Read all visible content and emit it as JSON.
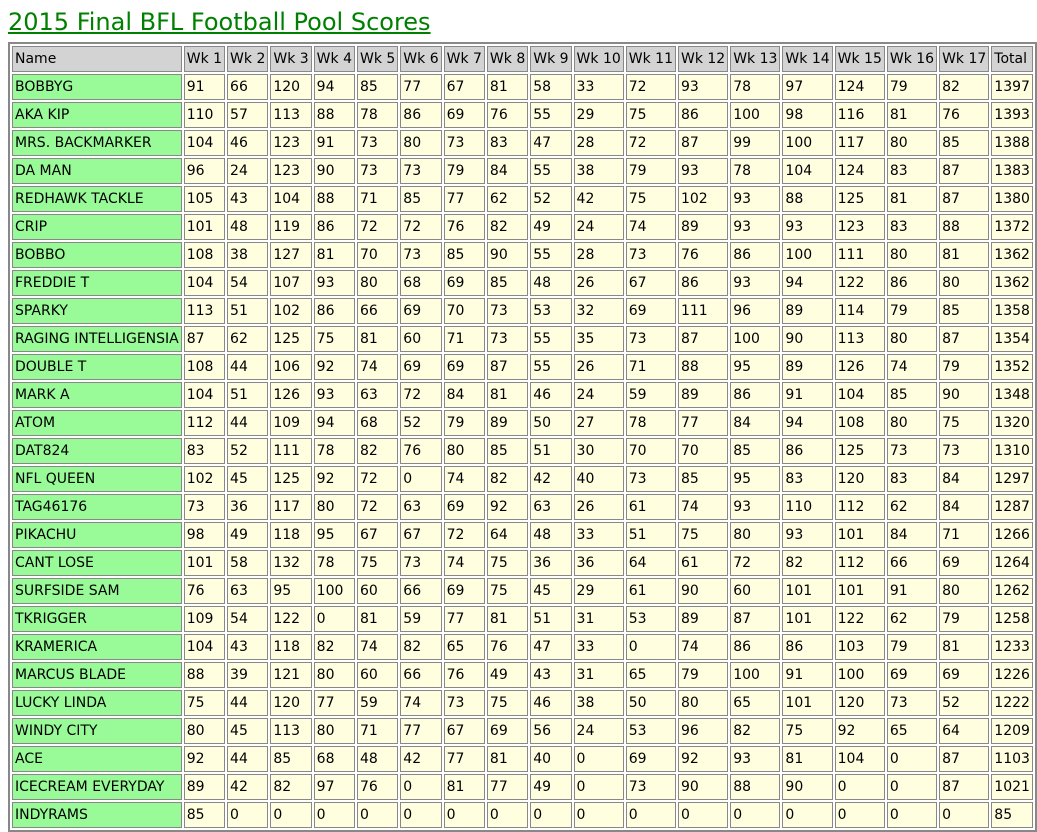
{
  "title": "2015 Final BFL Football Pool Scores",
  "table": {
    "header": [
      "Name",
      "Wk 1",
      "Wk 2",
      "Wk 3",
      "Wk 4",
      "Wk 5",
      "Wk 6",
      "Wk 7",
      "Wk 8",
      "Wk 9",
      "Wk 10",
      "Wk 11",
      "Wk 12",
      "Wk 13",
      "Wk 14",
      "Wk 15",
      "Wk 16",
      "Wk 17",
      "Total"
    ],
    "rows": [
      [
        "BOBBYG",
        91,
        66,
        120,
        94,
        85,
        77,
        67,
        81,
        58,
        33,
        72,
        93,
        78,
        97,
        124,
        79,
        82,
        1397
      ],
      [
        "AKA KIP",
        110,
        57,
        113,
        88,
        78,
        86,
        69,
        76,
        55,
        29,
        75,
        86,
        100,
        98,
        116,
        81,
        76,
        1393
      ],
      [
        "MRS. BACKMARKER",
        104,
        46,
        123,
        91,
        73,
        80,
        73,
        83,
        47,
        28,
        72,
        87,
        99,
        100,
        117,
        80,
        85,
        1388
      ],
      [
        "DA MAN",
        96,
        24,
        123,
        90,
        73,
        73,
        79,
        84,
        55,
        38,
        79,
        93,
        78,
        104,
        124,
        83,
        87,
        1383
      ],
      [
        "REDHAWK TACKLE",
        105,
        43,
        104,
        88,
        71,
        85,
        77,
        62,
        52,
        42,
        75,
        102,
        93,
        88,
        125,
        81,
        87,
        1380
      ],
      [
        "CRIP",
        101,
        48,
        119,
        86,
        72,
        72,
        76,
        82,
        49,
        24,
        74,
        89,
        93,
        93,
        123,
        83,
        88,
        1372
      ],
      [
        "BOBBO",
        108,
        38,
        127,
        81,
        70,
        73,
        85,
        90,
        55,
        28,
        73,
        76,
        86,
        100,
        111,
        80,
        81,
        1362
      ],
      [
        "FREDDIE T",
        104,
        54,
        107,
        93,
        80,
        68,
        69,
        85,
        48,
        26,
        67,
        86,
        93,
        94,
        122,
        86,
        80,
        1362
      ],
      [
        "SPARKY",
        113,
        51,
        102,
        86,
        66,
        69,
        70,
        73,
        53,
        32,
        69,
        111,
        96,
        89,
        114,
        79,
        85,
        1358
      ],
      [
        "RAGING INTELLIGENSIA",
        87,
        62,
        125,
        75,
        81,
        60,
        71,
        73,
        55,
        35,
        73,
        87,
        100,
        90,
        113,
        80,
        87,
        1354
      ],
      [
        "DOUBLE T",
        108,
        44,
        106,
        92,
        74,
        69,
        69,
        87,
        55,
        26,
        71,
        88,
        95,
        89,
        126,
        74,
        79,
        1352
      ],
      [
        "MARK A",
        104,
        51,
        126,
        93,
        63,
        72,
        84,
        81,
        46,
        24,
        59,
        89,
        86,
        91,
        104,
        85,
        90,
        1348
      ],
      [
        "ATOM",
        112,
        44,
        109,
        94,
        68,
        52,
        79,
        89,
        50,
        27,
        78,
        77,
        84,
        94,
        108,
        80,
        75,
        1320
      ],
      [
        "DAT824",
        83,
        52,
        111,
        78,
        82,
        76,
        80,
        85,
        51,
        30,
        70,
        70,
        85,
        86,
        125,
        73,
        73,
        1310
      ],
      [
        "NFL QUEEN",
        102,
        45,
        125,
        92,
        72,
        0,
        74,
        82,
        42,
        40,
        73,
        85,
        95,
        83,
        120,
        83,
        84,
        1297
      ],
      [
        "TAG46176",
        73,
        36,
        117,
        80,
        72,
        63,
        69,
        92,
        63,
        26,
        61,
        74,
        93,
        110,
        112,
        62,
        84,
        1287
      ],
      [
        "PIKACHU",
        98,
        49,
        118,
        95,
        67,
        67,
        72,
        64,
        48,
        33,
        51,
        75,
        80,
        93,
        101,
        84,
        71,
        1266
      ],
      [
        "CANT LOSE",
        101,
        58,
        132,
        78,
        75,
        73,
        74,
        75,
        36,
        36,
        64,
        61,
        72,
        82,
        112,
        66,
        69,
        1264
      ],
      [
        "SURFSIDE SAM",
        76,
        63,
        95,
        100,
        60,
        66,
        69,
        75,
        45,
        29,
        61,
        90,
        60,
        101,
        101,
        91,
        80,
        1262
      ],
      [
        "TKRIGGER",
        109,
        54,
        122,
        0,
        81,
        59,
        77,
        81,
        51,
        31,
        53,
        89,
        87,
        101,
        122,
        62,
        79,
        1258
      ],
      [
        "KRAMERICA",
        104,
        43,
        118,
        82,
        74,
        82,
        65,
        76,
        47,
        33,
        0,
        74,
        86,
        86,
        103,
        79,
        81,
        1233
      ],
      [
        "MARCUS BLADE",
        88,
        39,
        121,
        80,
        60,
        66,
        76,
        49,
        43,
        31,
        65,
        79,
        100,
        91,
        100,
        69,
        69,
        1226
      ],
      [
        "LUCKY LINDA",
        75,
        44,
        120,
        77,
        59,
        74,
        73,
        75,
        46,
        38,
        50,
        80,
        65,
        101,
        120,
        73,
        52,
        1222
      ],
      [
        "WINDY CITY",
        80,
        45,
        113,
        80,
        71,
        77,
        67,
        69,
        56,
        24,
        53,
        96,
        82,
        75,
        92,
        65,
        64,
        1209
      ],
      [
        "ACE",
        92,
        44,
        85,
        68,
        48,
        42,
        77,
        81,
        40,
        0,
        69,
        92,
        93,
        81,
        104,
        0,
        87,
        1103
      ],
      [
        "ICECREAM EVERYDAY",
        89,
        42,
        82,
        97,
        76,
        0,
        81,
        77,
        49,
        0,
        73,
        90,
        88,
        90,
        0,
        0,
        87,
        1021
      ],
      [
        "INDYRAMS",
        85,
        0,
        0,
        0,
        0,
        0,
        0,
        0,
        0,
        0,
        0,
        0,
        0,
        0,
        0,
        0,
        0,
        85
      ]
    ]
  }
}
